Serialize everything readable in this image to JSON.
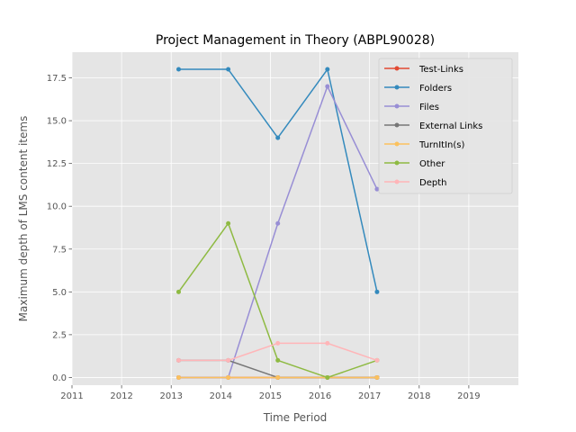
{
  "chart_data": {
    "type": "line",
    "title": "Project Management in Theory (ABPL90028)",
    "xlabel": "Time Period",
    "ylabel": "Maximum depth of LMS content items",
    "xlim": [
      2011,
      2020
    ],
    "ylim": [
      -0.45,
      19.0
    ],
    "x_ticks": [
      "2011",
      "2012",
      "2013",
      "2014",
      "2015",
      "2016",
      "2017",
      "2018",
      "2019"
    ],
    "y_ticks": [
      "0.0",
      "2.5",
      "5.0",
      "7.5",
      "10.0",
      "12.5",
      "15.0",
      "17.5"
    ],
    "grid": true,
    "legend_position": "top-right",
    "x": [
      2013.15,
      2014.15,
      2015.15,
      2016.15,
      2017.15
    ],
    "series": [
      {
        "name": "Test-Links",
        "color": "#e24a33",
        "values": [
          0,
          0,
          0,
          0,
          0
        ]
      },
      {
        "name": "Folders",
        "color": "#348abd",
        "values": [
          18,
          18,
          14,
          18,
          5
        ]
      },
      {
        "name": "Files",
        "color": "#988ed5",
        "values": [
          0,
          0,
          9,
          17,
          11
        ]
      },
      {
        "name": "External Links",
        "color": "#777777",
        "values": [
          1,
          1,
          0,
          0,
          0
        ]
      },
      {
        "name": "TurnItIn(s)",
        "color": "#fbc15e",
        "values": [
          0,
          0,
          0,
          0,
          0
        ]
      },
      {
        "name": "Other",
        "color": "#8eba42",
        "values": [
          5,
          9,
          1,
          0,
          1
        ]
      },
      {
        "name": "Depth",
        "color": "#ffb5b8",
        "values": [
          1,
          1,
          2,
          2,
          1
        ]
      }
    ]
  }
}
